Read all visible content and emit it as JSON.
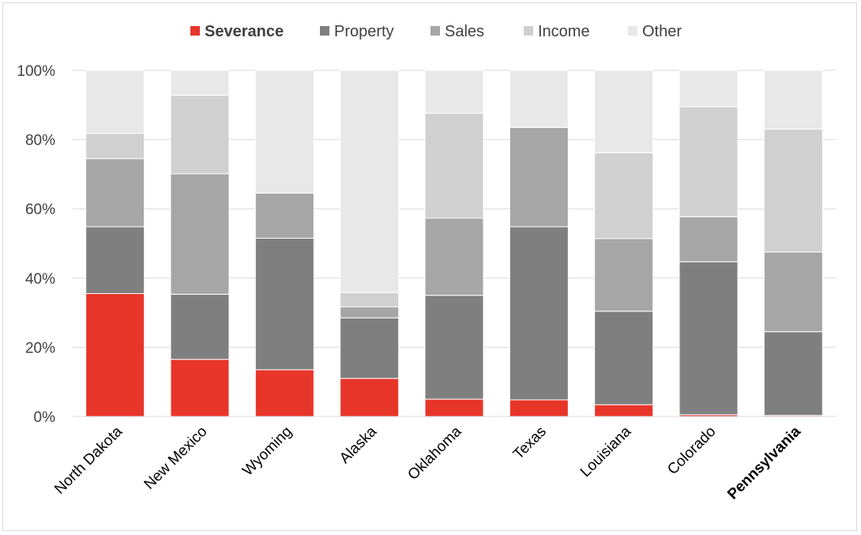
{
  "chart_data": {
    "type": "bar",
    "stacked": true,
    "percent": true,
    "categories": [
      "North Dakota",
      "New Mexico",
      "Wyoming",
      "Alaska",
      "Oklahoma",
      "Texas",
      "Louisiana",
      "Colorado",
      "Pennsylvania"
    ],
    "highlight_category": "Pennsylvania",
    "series": [
      {
        "name": "Severance",
        "color": "#e8352a",
        "bold": true,
        "values": [
          35.5,
          16.5,
          13.5,
          11.0,
          5.0,
          4.8,
          3.4,
          0.5,
          0.3
        ]
      },
      {
        "name": "Property",
        "color": "#7f7f7f",
        "values": [
          19.3,
          18.8,
          38.0,
          17.5,
          30.0,
          50.0,
          27.0,
          44.2,
          24.2
        ]
      },
      {
        "name": "Sales",
        "color": "#a6a6a6",
        "values": [
          19.7,
          34.8,
          13.0,
          3.2,
          22.3,
          28.7,
          21.0,
          13.0,
          23.0
        ]
      },
      {
        "name": "Income",
        "color": "#d0d0d0",
        "values": [
          7.3,
          22.7,
          0.0,
          4.1,
          30.3,
          0.0,
          24.8,
          31.8,
          35.5
        ]
      },
      {
        "name": "Other",
        "color": "#e8e8e8",
        "values": [
          18.2,
          7.2,
          35.5,
          64.2,
          12.4,
          16.5,
          23.8,
          10.5,
          17.0
        ]
      }
    ],
    "y_ticks": [
      "0%",
      "20%",
      "40%",
      "60%",
      "80%",
      "100%"
    ],
    "ylim": [
      0,
      100
    ],
    "grid": true,
    "legend_position": "top"
  }
}
